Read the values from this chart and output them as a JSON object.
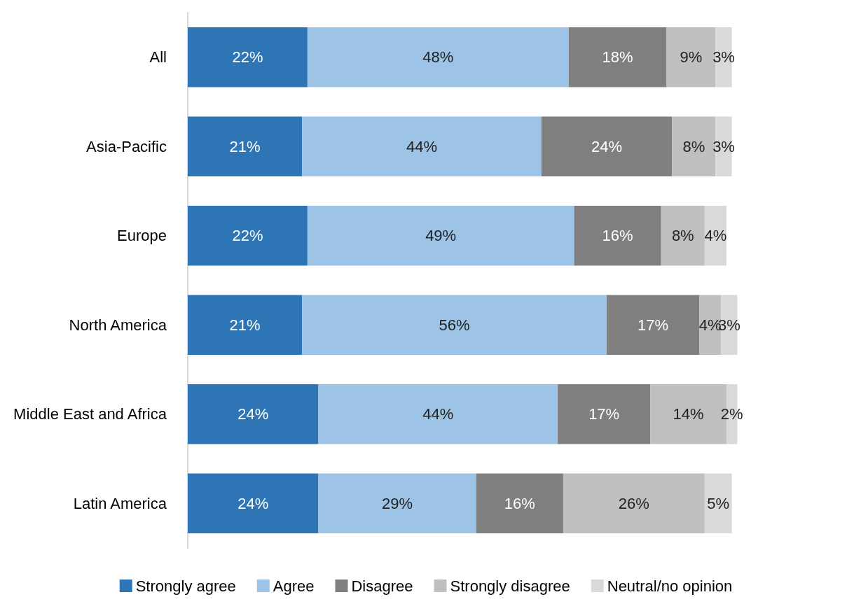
{
  "chart_data": {
    "type": "bar",
    "orientation": "horizontal",
    "stacked": true,
    "categories": [
      "All",
      "Asia-Pacific",
      "Europe",
      "North America",
      "Middle East and Africa",
      "Latin America"
    ],
    "series": [
      {
        "name": "Strongly agree",
        "color": "#2e75b6",
        "values": [
          22,
          21,
          22,
          21,
          24,
          24
        ],
        "value_labels": [
          "22%",
          "21%",
          "22%",
          "21%",
          "24%",
          "24%"
        ]
      },
      {
        "name": "Agree",
        "color": "#9dc3e6",
        "values": [
          48,
          44,
          49,
          56,
          44,
          29
        ],
        "value_labels": [
          "48%",
          "44%",
          "49%",
          "56%",
          "44%",
          "29%"
        ]
      },
      {
        "name": "Disagree",
        "color": "#7f7f7f",
        "values": [
          18,
          24,
          16,
          17,
          17,
          16
        ],
        "value_labels": [
          "18%",
          "24%",
          "16%",
          "17%",
          "17%",
          "16%"
        ]
      },
      {
        "name": "Strongly disagree",
        "color": "#bfbfbf",
        "values": [
          9,
          8,
          8,
          4,
          14,
          26
        ],
        "value_labels": [
          "9%",
          "8%",
          "8%",
          "4%",
          "14%",
          "26%"
        ]
      },
      {
        "name": "Neutral/no opinion",
        "color": "#d9d9d9",
        "values": [
          3,
          3,
          4,
          3,
          2,
          5
        ],
        "value_labels": [
          "3%",
          "3%",
          "4%",
          "3%",
          "2%",
          "5%"
        ]
      }
    ],
    "legend": "bottom",
    "tick_labels": "y"
  }
}
